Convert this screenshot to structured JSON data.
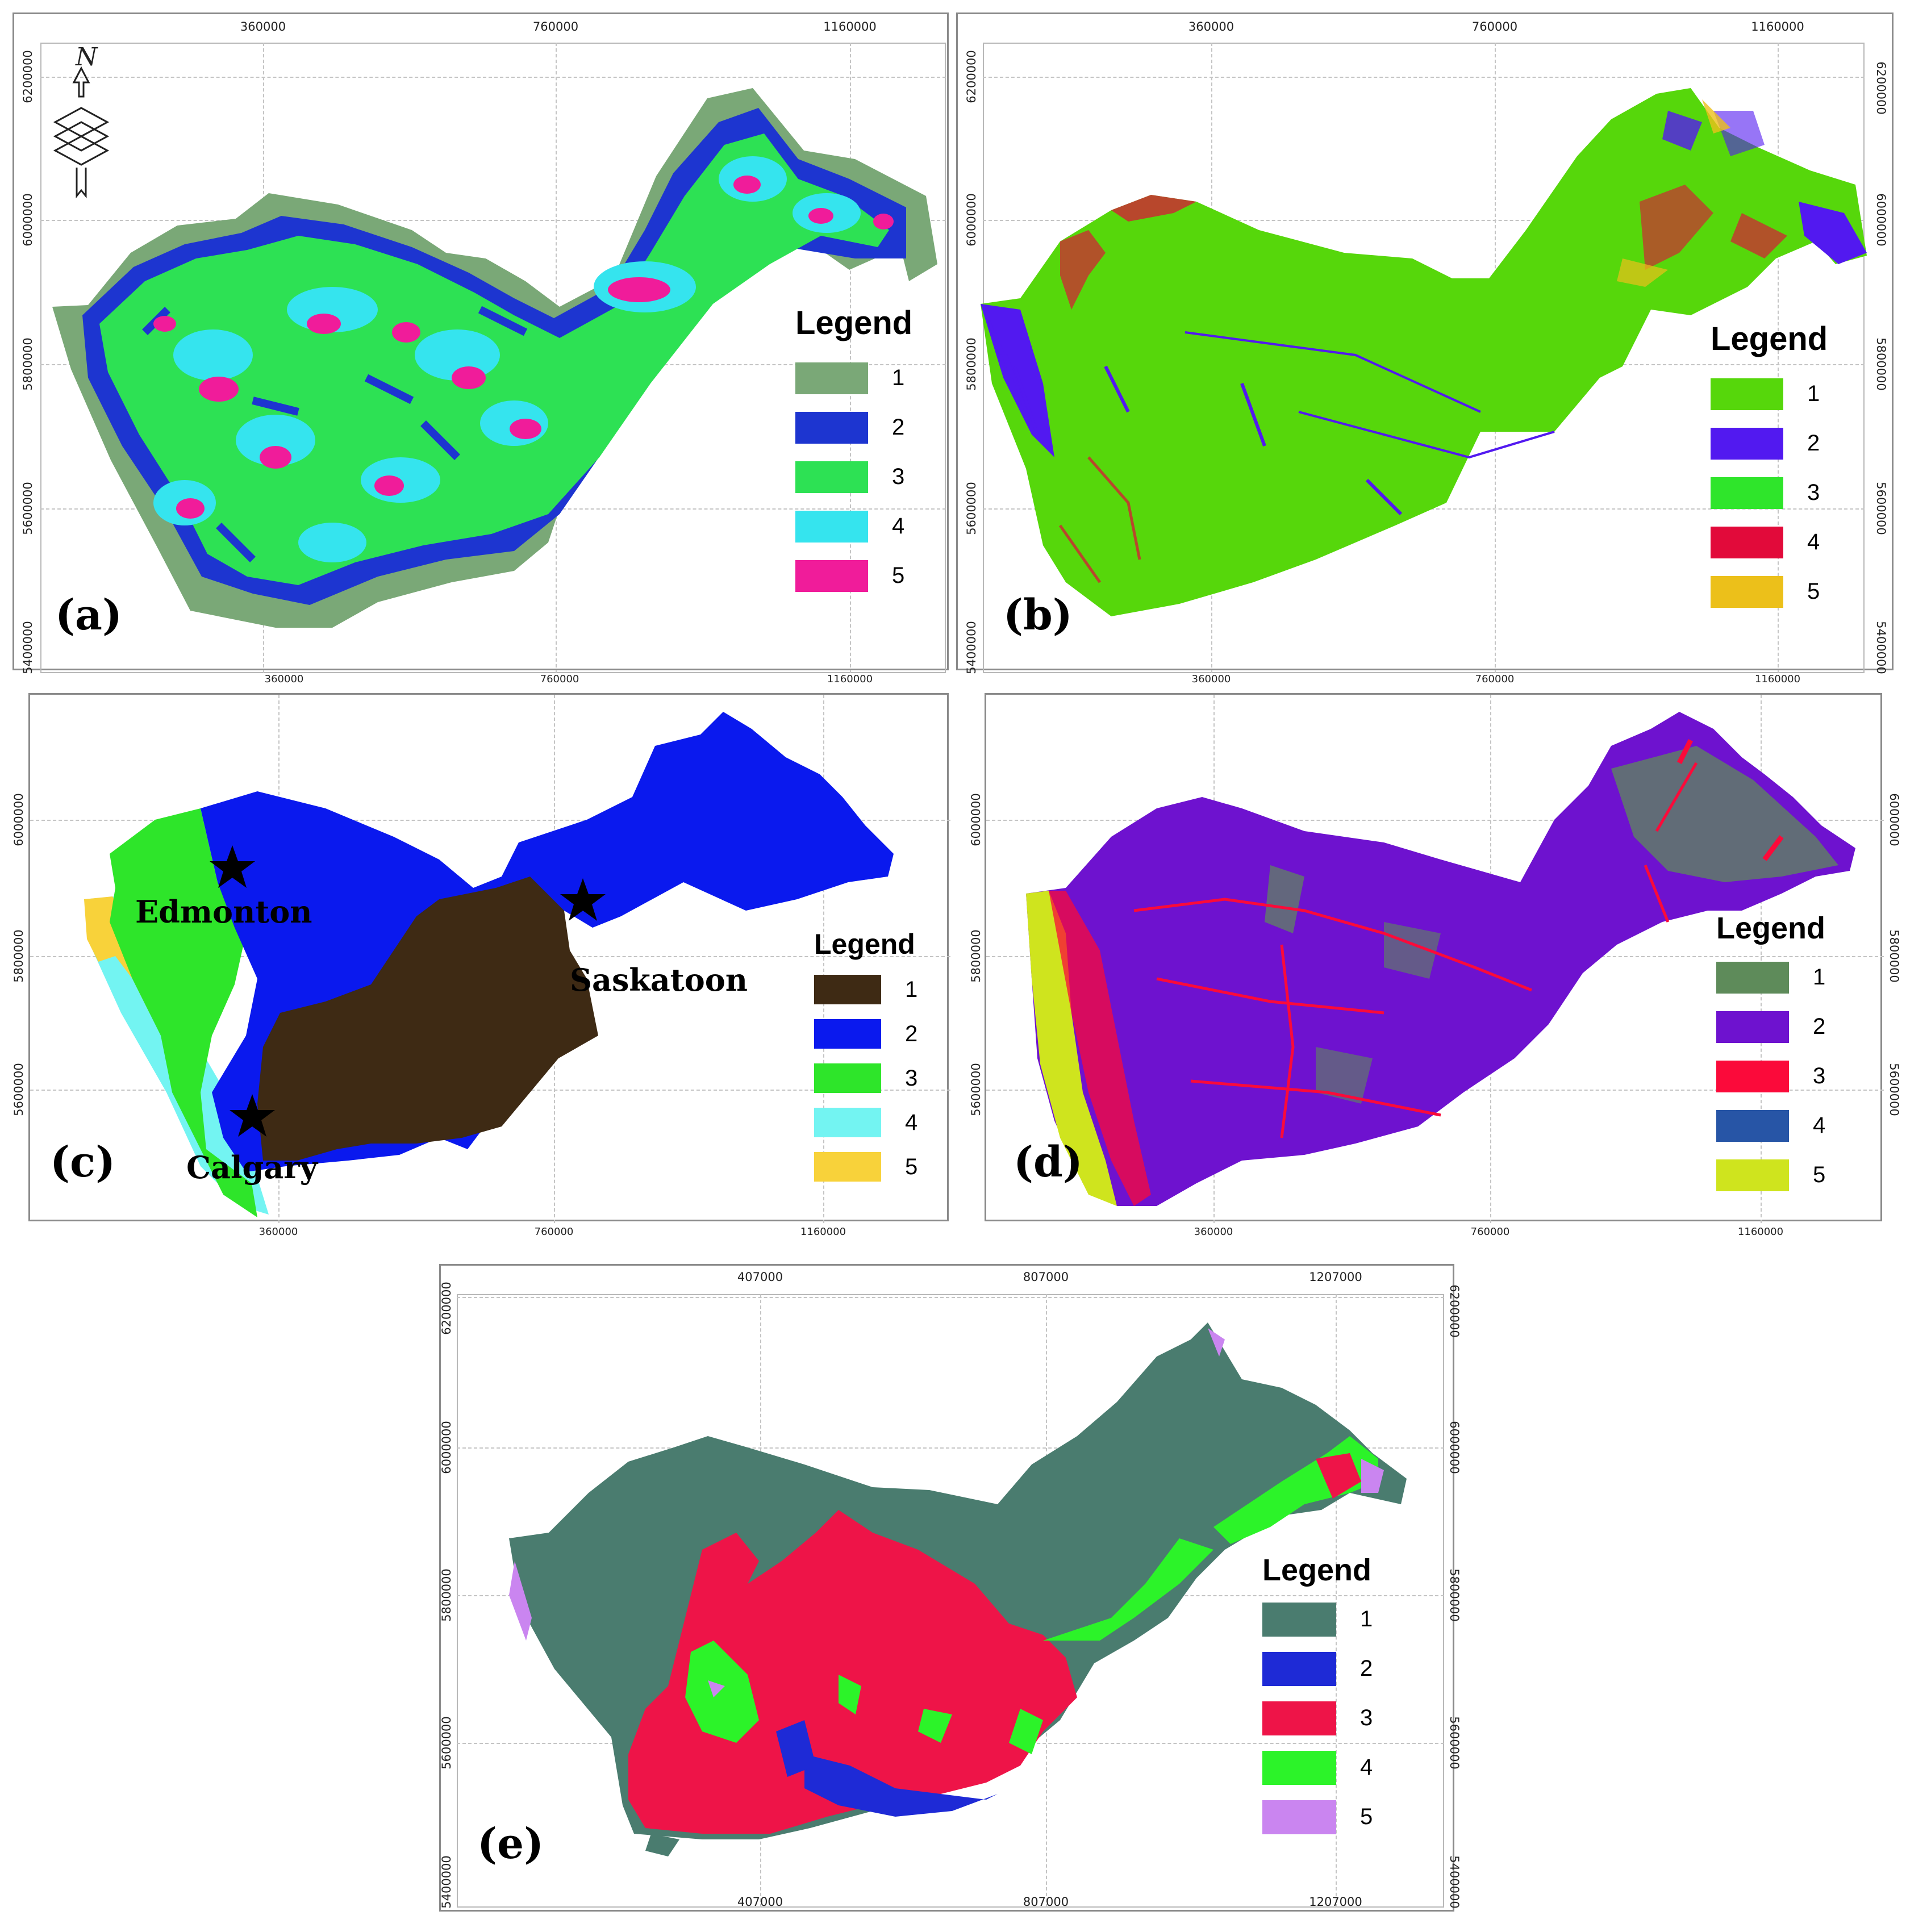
{
  "panels": {
    "a": {
      "label": "(a)",
      "top_ticks": [
        "360000",
        "760000",
        "1160000"
      ],
      "bottom_ticks": [
        "360000",
        "760000",
        "1160000"
      ],
      "left_ticks": [
        "6200000",
        "6000000",
        "5800000",
        "5600000",
        "5400000"
      ],
      "right_ticks": [
        "6200000",
        "6000000",
        "5800000",
        "5600000",
        "5400000"
      ],
      "legend_title": "Legend",
      "legend": [
        {
          "label": "1",
          "color": "#7aa877"
        },
        {
          "label": "2",
          "color": "#1d35d0"
        },
        {
          "label": "3",
          "color": "#2de154"
        },
        {
          "label": "4",
          "color": "#35e4ee"
        },
        {
          "label": "5",
          "color": "#f01c9a"
        }
      ]
    },
    "b": {
      "label": "(b)",
      "top_ticks": [
        "360000",
        "760000",
        "1160000"
      ],
      "bottom_ticks": [
        "360000",
        "760000",
        "1160000"
      ],
      "left_ticks": [
        "6200000",
        "6000000",
        "5800000",
        "5600000",
        "5400000"
      ],
      "right_ticks": [
        "6200000",
        "6000000",
        "5800000",
        "5600000",
        "5400000"
      ],
      "legend_title": "Legend",
      "legend": [
        {
          "label": "1",
          "color": "#56d70b"
        },
        {
          "label": "2",
          "color": "#5219f0"
        },
        {
          "label": "3",
          "color": "#2fe52b"
        },
        {
          "label": "4",
          "color": "#e20a3a"
        },
        {
          "label": "5",
          "color": "#ecc01a"
        }
      ]
    },
    "c": {
      "label": "(c)",
      "bottom_ticks": [
        "360000",
        "760000",
        "1160000"
      ],
      "left_ticks": [
        "6000000",
        "5800000",
        "5600000"
      ],
      "legend_title": "Legend",
      "legend": [
        {
          "label": "1",
          "color": "#3e2a14"
        },
        {
          "label": "2",
          "color": "#0a19ee"
        },
        {
          "label": "3",
          "color": "#2ee52a"
        },
        {
          "label": "4",
          "color": "#73f4f2"
        },
        {
          "label": "5",
          "color": "#f8d23a"
        }
      ],
      "cities": [
        "Edmonton",
        "Saskatoon",
        "Calgary"
      ]
    },
    "d": {
      "label": "(d)",
      "bottom_ticks": [
        "360000",
        "760000",
        "1160000"
      ],
      "left_ticks": [
        "6000000",
        "5800000",
        "5600000"
      ],
      "right_ticks": [
        "6000000",
        "5800000",
        "5600000"
      ],
      "legend_title": "Legend",
      "legend": [
        {
          "label": "1",
          "color": "#5e8b5a"
        },
        {
          "label": "2",
          "color": "#6e12cf"
        },
        {
          "label": "3",
          "color": "#fb0a3a"
        },
        {
          "label": "4",
          "color": "#2755a6"
        },
        {
          "label": "5",
          "color": "#cfe41e"
        }
      ]
    },
    "e": {
      "label": "(e)",
      "top_ticks": [
        "407000",
        "807000",
        "1207000"
      ],
      "bottom_ticks": [
        "407000",
        "807000",
        "1207000"
      ],
      "left_ticks": [
        "6200000",
        "6000000",
        "5800000",
        "5600000",
        "5400000"
      ],
      "right_ticks": [
        "6200000",
        "6000000",
        "5800000",
        "5600000",
        "5400000"
      ],
      "legend_title": "Legend",
      "legend": [
        {
          "label": "1",
          "color": "#4a7c6f"
        },
        {
          "label": "2",
          "color": "#1e2ad6"
        },
        {
          "label": "3",
          "color": "#ee1448"
        },
        {
          "label": "4",
          "color": "#2cf329"
        },
        {
          "label": "5",
          "color": "#ca85f0"
        }
      ]
    }
  }
}
